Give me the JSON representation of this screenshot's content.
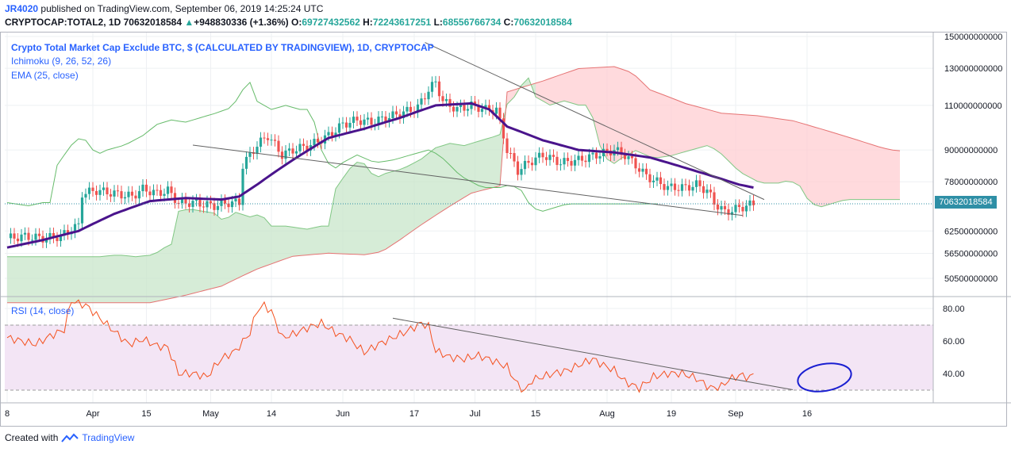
{
  "header": {
    "username": "JR4020",
    "published_text": "published on TradingView.com, September 06, 2019 14:25:24 UTC",
    "symbol": "CRYPTOCAP:TOTAL2, 1D",
    "last": "70632018584",
    "change_arrow": "▲",
    "change": "+948830336 (+1.36%)",
    "o_label": "O:",
    "o_value": "69727432562",
    "h_label": "H:",
    "h_value": "72243617251",
    "l_label": "L:",
    "l_value": "68556766734",
    "c_label": "C:",
    "c_value": "70632018584"
  },
  "legend": {
    "title": "Crypto Total Market Cap Exclude BTC, $ (CALCULATED BY TRADINGVIEW), 1D, CRYPTOCAP",
    "ichimoku": "Ichimoku (9, 26, 52, 26)",
    "ema": "EMA (25, close)",
    "rsi": "RSI (14, close)"
  },
  "footer": {
    "created_with": "Created with",
    "brand": "TradingView"
  },
  "colors": {
    "up": "#26a69a",
    "down": "#ef5350",
    "ema": "#4a148c",
    "rsi": "#f4511e",
    "cloud_green": "#c8e6c9",
    "cloud_red": "#ffcdd2",
    "accent": "#2962ff"
  },
  "chart_data": {
    "type": "candlestick",
    "title": "Crypto Total Market Cap Exclude BTC, $ (CALCULATED BY TRADINGVIEW), 1D, CRYPTOCAP",
    "price_axis": {
      "scale": "log",
      "ticks": [
        "150000000000",
        "130000000000",
        "110000000000",
        "90000000000",
        "78000000000",
        "62500000000",
        "56500000000",
        "50500000000"
      ],
      "tick_values": [
        150000000000,
        130000000000,
        110000000000,
        90000000000,
        78000000000,
        62500000000,
        56500000000,
        50500000000
      ],
      "current_value": 70632018584,
      "current_label": "70632018584"
    },
    "x_axis": {
      "ticks": [
        "8",
        "Apr",
        "15",
        "May",
        "14",
        "Jun",
        "17",
        "Jul",
        "15",
        "Aug",
        "19",
        "Sep",
        "16"
      ],
      "tick_days": [
        0,
        24,
        39,
        57,
        74,
        94,
        114,
        131,
        148,
        168,
        186,
        204,
        224
      ]
    },
    "price_close_path": [
      [
        0,
        60.5
      ],
      [
        5,
        61
      ],
      [
        10,
        60.5
      ],
      [
        15,
        61
      ],
      [
        18,
        63
      ],
      [
        20,
        64
      ],
      [
        21,
        74
      ],
      [
        25,
        75
      ],
      [
        30,
        74
      ],
      [
        35,
        73
      ],
      [
        38,
        75.5
      ],
      [
        42,
        74
      ],
      [
        45,
        75
      ],
      [
        48,
        71
      ],
      [
        52,
        71
      ],
      [
        55,
        70.5
      ],
      [
        58,
        70
      ],
      [
        62,
        71
      ],
      [
        65,
        71
      ],
      [
        66,
        84
      ],
      [
        70,
        92
      ],
      [
        73,
        96
      ],
      [
        77,
        88
      ],
      [
        80,
        90
      ],
      [
        85,
        92
      ],
      [
        90,
        96
      ],
      [
        94,
        101
      ],
      [
        98,
        103
      ],
      [
        102,
        102
      ],
      [
        106,
        104
      ],
      [
        110,
        106
      ],
      [
        115,
        109
      ],
      [
        118,
        118
      ],
      [
        120,
        122
      ],
      [
        122,
        112
      ],
      [
        126,
        108
      ],
      [
        130,
        110
      ],
      [
        134,
        108
      ],
      [
        137,
        108
      ],
      [
        140,
        90
      ],
      [
        143,
        82
      ],
      [
        146,
        85
      ],
      [
        150,
        88
      ],
      [
        155,
        85
      ],
      [
        160,
        86
      ],
      [
        165,
        88
      ],
      [
        170,
        90
      ],
      [
        173,
        88
      ],
      [
        176,
        84
      ],
      [
        179,
        80
      ],
      [
        182,
        78
      ],
      [
        185,
        76
      ],
      [
        190,
        76
      ],
      [
        193,
        77
      ],
      [
        196,
        75
      ],
      [
        198,
        71
      ],
      [
        201,
        68
      ],
      [
        204,
        69
      ],
      [
        207,
        70
      ],
      [
        209,
        70.6
      ]
    ],
    "ema_25_path": [
      [
        0,
        58
      ],
      [
        10,
        60
      ],
      [
        20,
        62.5
      ],
      [
        30,
        67.5
      ],
      [
        40,
        71.5
      ],
      [
        50,
        72.5
      ],
      [
        60,
        72
      ],
      [
        65,
        73
      ],
      [
        70,
        77
      ],
      [
        80,
        86
      ],
      [
        90,
        95
      ],
      [
        100,
        99
      ],
      [
        110,
        104
      ],
      [
        120,
        110
      ],
      [
        130,
        111
      ],
      [
        135,
        108
      ],
      [
        140,
        100
      ],
      [
        150,
        94
      ],
      [
        160,
        90
      ],
      [
        170,
        89
      ],
      [
        180,
        87
      ],
      [
        190,
        83
      ],
      [
        195,
        81
      ],
      [
        200,
        79
      ],
      [
        205,
        77
      ],
      [
        209,
        76
      ]
    ],
    "trendlines": [
      {
        "name": "upper resistance",
        "from": [
          117,
          146
        ],
        "to": [
          212,
          72
        ]
      },
      {
        "name": "lower support",
        "from": [
          52,
          92
        ],
        "to": [
          206,
          67
        ]
      }
    ],
    "rsi": {
      "ticks": [
        "80.00",
        "60.00",
        "40.00"
      ],
      "tick_values": [
        80,
        60,
        40
      ],
      "overbought": 70,
      "oversold": 30,
      "path": [
        [
          0,
          62
        ],
        [
          4,
          60
        ],
        [
          8,
          58
        ],
        [
          12,
          63
        ],
        [
          16,
          67
        ],
        [
          18,
          85
        ],
        [
          20,
          83
        ],
        [
          22,
          82
        ],
        [
          26,
          74
        ],
        [
          30,
          66
        ],
        [
          34,
          58
        ],
        [
          38,
          61
        ],
        [
          42,
          57
        ],
        [
          45,
          56
        ],
        [
          48,
          40
        ],
        [
          52,
          40
        ],
        [
          56,
          38
        ],
        [
          58,
          44
        ],
        [
          60,
          49
        ],
        [
          64,
          54
        ],
        [
          68,
          65
        ],
        [
          70,
          79
        ],
        [
          72,
          82
        ],
        [
          74,
          78
        ],
        [
          77,
          62
        ],
        [
          80,
          64
        ],
        [
          84,
          68
        ],
        [
          88,
          71
        ],
        [
          92,
          65
        ],
        [
          96,
          61
        ],
        [
          100,
          53
        ],
        [
          104,
          58
        ],
        [
          108,
          62
        ],
        [
          112,
          66
        ],
        [
          116,
          71
        ],
        [
          118,
          69
        ],
        [
          120,
          54
        ],
        [
          124,
          50
        ],
        [
          128,
          49
        ],
        [
          132,
          51
        ],
        [
          136,
          48
        ],
        [
          140,
          44
        ],
        [
          143,
          33
        ],
        [
          145,
          29
        ],
        [
          147,
          36
        ],
        [
          150,
          38
        ],
        [
          153,
          40
        ],
        [
          157,
          42
        ],
        [
          161,
          46
        ],
        [
          164,
          49
        ],
        [
          167,
          45
        ],
        [
          170,
          42
        ],
        [
          173,
          35
        ],
        [
          177,
          31
        ],
        [
          181,
          38
        ],
        [
          185,
          40
        ],
        [
          189,
          40
        ],
        [
          193,
          37
        ],
        [
          197,
          31
        ],
        [
          200,
          32
        ],
        [
          202,
          36
        ],
        [
          204,
          38
        ],
        [
          206,
          39
        ],
        [
          208,
          37
        ],
        [
          209,
          40
        ]
      ],
      "trendline": {
        "from": [
          108,
          74
        ],
        "to": [
          220,
          30
        ]
      }
    }
  }
}
